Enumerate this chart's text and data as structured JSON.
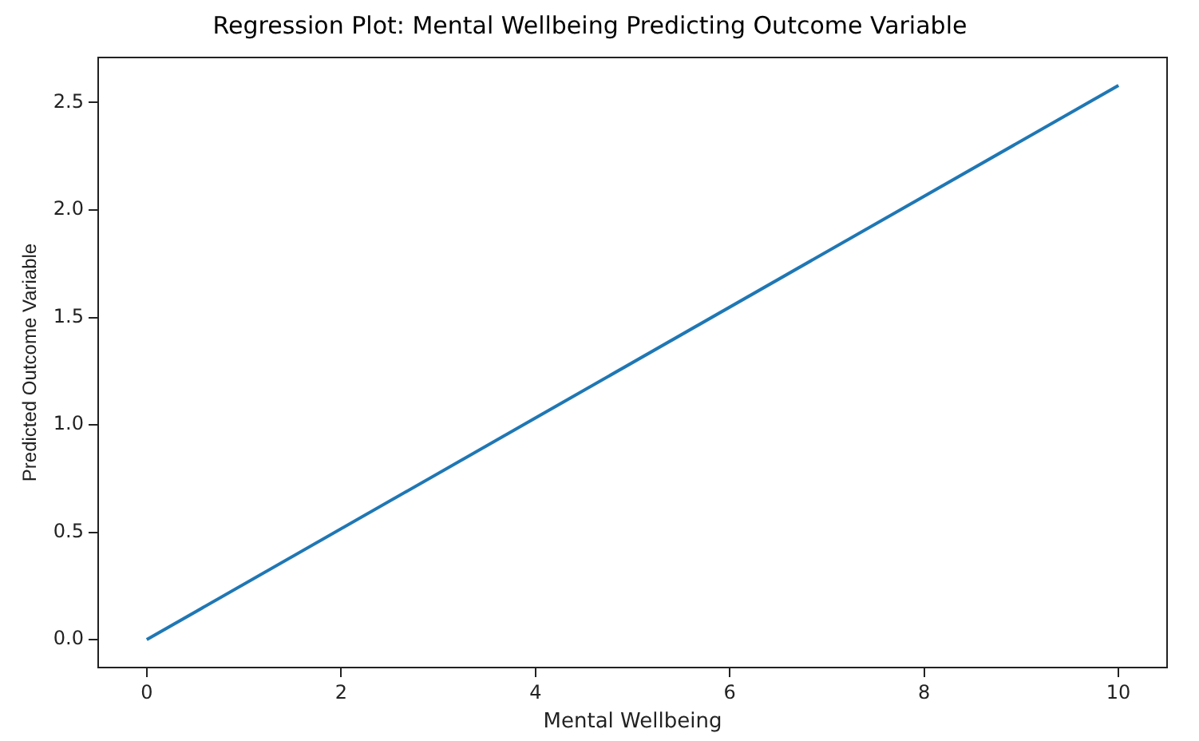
{
  "chart_data": {
    "type": "line",
    "title": "Regression Plot: Mental Wellbeing Predicting Outcome Variable",
    "xlabel": "Mental Wellbeing",
    "ylabel": "Predicted Outcome Variable",
    "x": [
      0,
      10
    ],
    "series": [
      {
        "color": "#1f77b4",
        "values": [
          0,
          2.58
        ]
      }
    ],
    "xlim": [
      -0.5,
      10.5
    ],
    "xticks": [
      0,
      2,
      4,
      6,
      8,
      10
    ],
    "ylim": [
      -0.13,
      2.71
    ],
    "yticks": [
      {
        "value": 0,
        "label": "0.0"
      },
      {
        "value": 0.5,
        "label": "0.5"
      },
      {
        "value": 1,
        "label": "1.0"
      },
      {
        "value": 1.5,
        "label": "1.5"
      },
      {
        "value": 2,
        "label": "2.0"
      },
      {
        "value": 2.5,
        "label": "2.5"
      }
    ],
    "grid": false,
    "legend": false,
    "marker": "none",
    "line_style": "solid"
  }
}
